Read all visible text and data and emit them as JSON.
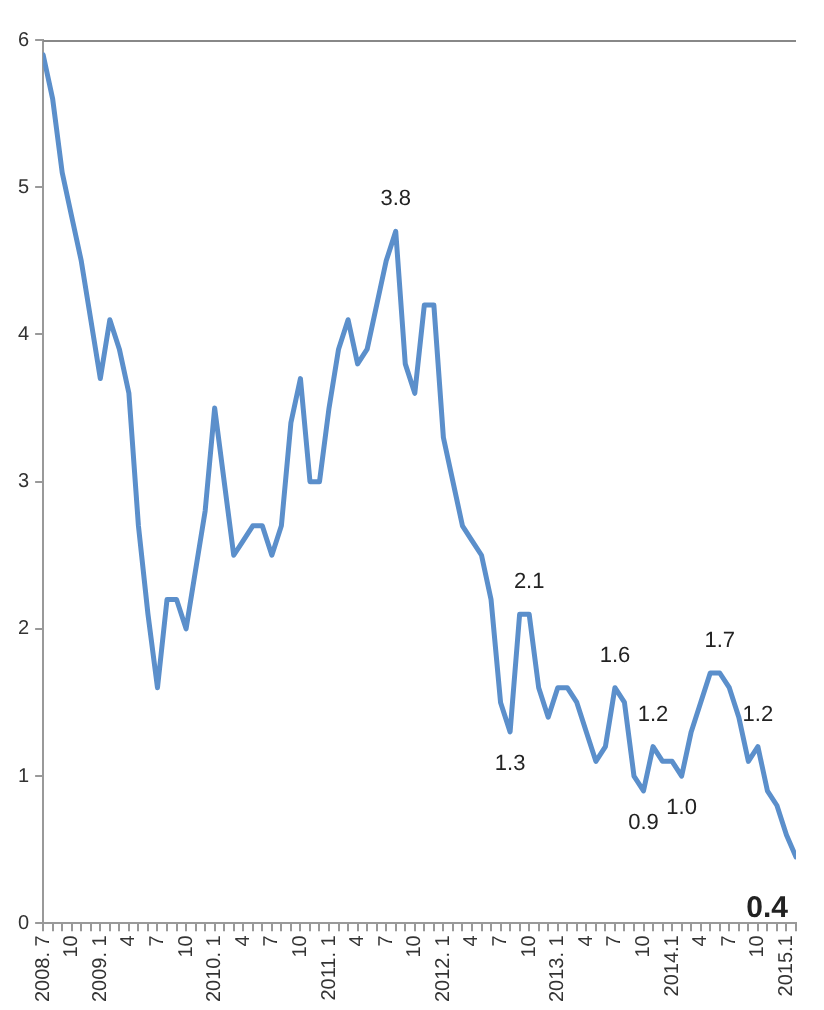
{
  "chart_data": {
    "type": "line",
    "x": [
      "2008-07",
      "2008-08",
      "2008-09",
      "2008-10",
      "2008-11",
      "2008-12",
      "2009-01",
      "2009-02",
      "2009-03",
      "2009-04",
      "2009-05",
      "2009-06",
      "2009-07",
      "2009-08",
      "2009-09",
      "2009-10",
      "2009-11",
      "2009-12",
      "2010-01",
      "2010-02",
      "2010-03",
      "2010-04",
      "2010-05",
      "2010-06",
      "2010-07",
      "2010-08",
      "2010-09",
      "2010-10",
      "2010-11",
      "2010-12",
      "2011-01",
      "2011-02",
      "2011-03",
      "2011-04",
      "2011-05",
      "2011-06",
      "2011-07",
      "2011-08",
      "2011-09",
      "2011-10",
      "2011-11",
      "2011-12",
      "2012-01",
      "2012-02",
      "2012-03",
      "2012-04",
      "2012-05",
      "2012-06",
      "2012-07",
      "2012-08",
      "2012-09",
      "2012-10",
      "2012-11",
      "2012-12",
      "2013-01",
      "2013-02",
      "2013-03",
      "2013-04",
      "2013-05",
      "2013-06",
      "2013-07",
      "2013-08",
      "2013-09",
      "2013-10",
      "2013-11",
      "2013-12",
      "2014-01",
      "2014-02",
      "2014-03",
      "2014-04",
      "2014-05",
      "2014-06",
      "2014-07",
      "2014-08",
      "2014-09",
      "2014-10",
      "2014-11",
      "2014-12",
      "2015-01",
      "2015-02"
    ],
    "series": [
      {
        "color": "#5b8fcb",
        "values": [
          5.9,
          5.6,
          5.1,
          4.8,
          4.5,
          4.1,
          3.7,
          4.1,
          3.9,
          3.6,
          2.7,
          2.1,
          1.6,
          2.2,
          2.2,
          2.0,
          2.4,
          2.8,
          3.5,
          3.0,
          2.5,
          2.6,
          2.7,
          2.7,
          2.5,
          2.7,
          3.4,
          3.7,
          3.0,
          3.0,
          3.5,
          3.9,
          4.1,
          3.8,
          3.9,
          4.2,
          4.5,
          4.7,
          3.8,
          3.6,
          4.2,
          4.2,
          3.3,
          3.0,
          2.7,
          2.6,
          2.5,
          2.2,
          1.5,
          1.3,
          2.1,
          2.1,
          1.6,
          1.4,
          1.6,
          1.6,
          1.5,
          1.3,
          1.1,
          1.2,
          1.6,
          1.5,
          1.0,
          0.9,
          1.2,
          1.1,
          1.1,
          1.0,
          1.3,
          1.5,
          1.7,
          1.7,
          1.6,
          1.4,
          1.1,
          1.2,
          0.9,
          0.8,
          0.6,
          0.45
        ]
      }
    ],
    "xlim": [
      "2008-07",
      "2015-02"
    ],
    "xticks": [
      {
        "value": "2008-07",
        "label": "2008. 7"
      },
      {
        "value": "2008-08",
        "label": null
      },
      {
        "value": "2008-09",
        "label": null
      },
      {
        "value": "2008-10",
        "label": "10"
      },
      {
        "value": "2008-11",
        "label": null
      },
      {
        "value": "2008-12",
        "label": null
      },
      {
        "value": "2009-01",
        "label": "2009. 1"
      },
      {
        "value": "2009-02",
        "label": null
      },
      {
        "value": "2009-03",
        "label": null
      },
      {
        "value": "2009-04",
        "label": "4"
      },
      {
        "value": "2009-05",
        "label": null
      },
      {
        "value": "2009-06",
        "label": null
      },
      {
        "value": "2009-07",
        "label": "7"
      },
      {
        "value": "2009-08",
        "label": null
      },
      {
        "value": "2009-09",
        "label": null
      },
      {
        "value": "2009-10",
        "label": "10"
      },
      {
        "value": "2009-11",
        "label": null
      },
      {
        "value": "2009-12",
        "label": null
      },
      {
        "value": "2010-01",
        "label": "2010. 1"
      },
      {
        "value": "2010-02",
        "label": null
      },
      {
        "value": "2010-03",
        "label": null
      },
      {
        "value": "2010-04",
        "label": "4"
      },
      {
        "value": "2010-05",
        "label": null
      },
      {
        "value": "2010-06",
        "label": null
      },
      {
        "value": "2010-07",
        "label": "7"
      },
      {
        "value": "2010-08",
        "label": null
      },
      {
        "value": "2010-09",
        "label": null
      },
      {
        "value": "2010-10",
        "label": "10"
      },
      {
        "value": "2010-11",
        "label": null
      },
      {
        "value": "2010-12",
        "label": null
      },
      {
        "value": "2011-01",
        "label": "2011. 1"
      },
      {
        "value": "2011-02",
        "label": null
      },
      {
        "value": "2011-03",
        "label": null
      },
      {
        "value": "2011-04",
        "label": "4"
      },
      {
        "value": "2011-05",
        "label": null
      },
      {
        "value": "2011-06",
        "label": null
      },
      {
        "value": "2011-07",
        "label": "7"
      },
      {
        "value": "2011-08",
        "label": null
      },
      {
        "value": "2011-09",
        "label": null
      },
      {
        "value": "2011-10",
        "label": "10"
      },
      {
        "value": "2011-11",
        "label": null
      },
      {
        "value": "2011-12",
        "label": null
      },
      {
        "value": "2012-01",
        "label": "2012. 1"
      },
      {
        "value": "2012-02",
        "label": null
      },
      {
        "value": "2012-03",
        "label": null
      },
      {
        "value": "2012-04",
        "label": "4"
      },
      {
        "value": "2012-05",
        "label": null
      },
      {
        "value": "2012-06",
        "label": null
      },
      {
        "value": "2012-07",
        "label": "7"
      },
      {
        "value": "2012-08",
        "label": null
      },
      {
        "value": "2012-09",
        "label": null
      },
      {
        "value": "2012-10",
        "label": "10"
      },
      {
        "value": "2012-11",
        "label": null
      },
      {
        "value": "2012-12",
        "label": null
      },
      {
        "value": "2013-01",
        "label": "2013. 1"
      },
      {
        "value": "2013-02",
        "label": null
      },
      {
        "value": "2013-03",
        "label": null
      },
      {
        "value": "2013-04",
        "label": "4"
      },
      {
        "value": "2013-05",
        "label": null
      },
      {
        "value": "2013-06",
        "label": null
      },
      {
        "value": "2013-07",
        "label": "7"
      },
      {
        "value": "2013-08",
        "label": null
      },
      {
        "value": "2013-09",
        "label": null
      },
      {
        "value": "2013-10",
        "label": "10"
      },
      {
        "value": "2013-11",
        "label": null
      },
      {
        "value": "2013-12",
        "label": null
      },
      {
        "value": "2014-01",
        "label": "2014.1"
      },
      {
        "value": "2014-02",
        "label": null
      },
      {
        "value": "2014-03",
        "label": null
      },
      {
        "value": "2014-04",
        "label": "4"
      },
      {
        "value": "2014-05",
        "label": null
      },
      {
        "value": "2014-06",
        "label": null
      },
      {
        "value": "2014-07",
        "label": "7"
      },
      {
        "value": "2014-08",
        "label": null
      },
      {
        "value": "2014-09",
        "label": null
      },
      {
        "value": "2014-10",
        "label": "10"
      },
      {
        "value": "2014-11",
        "label": null
      },
      {
        "value": "2014-12",
        "label": null
      },
      {
        "value": "2015-01",
        "label": "2015.1"
      },
      {
        "value": "2015-02",
        "label": null
      }
    ],
    "ylim": [
      0,
      6
    ],
    "yticks": [
      0,
      1,
      2,
      3,
      4,
      5,
      6
    ],
    "annotations": [
      {
        "text": "3.8",
        "x": "2011-08",
        "y": 4.7
      },
      {
        "text": "2.1",
        "x": "2012-10",
        "y": 2.1
      },
      {
        "text": "1.3",
        "x": "2012-08",
        "y": 1.3
      },
      {
        "text": "1.6",
        "x": "2013-07",
        "y": 1.6
      },
      {
        "text": "0.9",
        "x": "2013-10",
        "y": 0.9
      },
      {
        "text": "1.2",
        "x": "2013-11",
        "y": 1.2
      },
      {
        "text": "1.0",
        "x": "2014-02",
        "y": 1.0
      },
      {
        "text": "1.7",
        "x": "2014-06",
        "y": 1.7
      },
      {
        "text": "1.2",
        "x": "2014-10",
        "y": 1.2
      },
      {
        "text": "0.4",
        "x": "2015-02",
        "y": 0.45
      }
    ],
    "marker": "none",
    "line_style": "solid"
  }
}
